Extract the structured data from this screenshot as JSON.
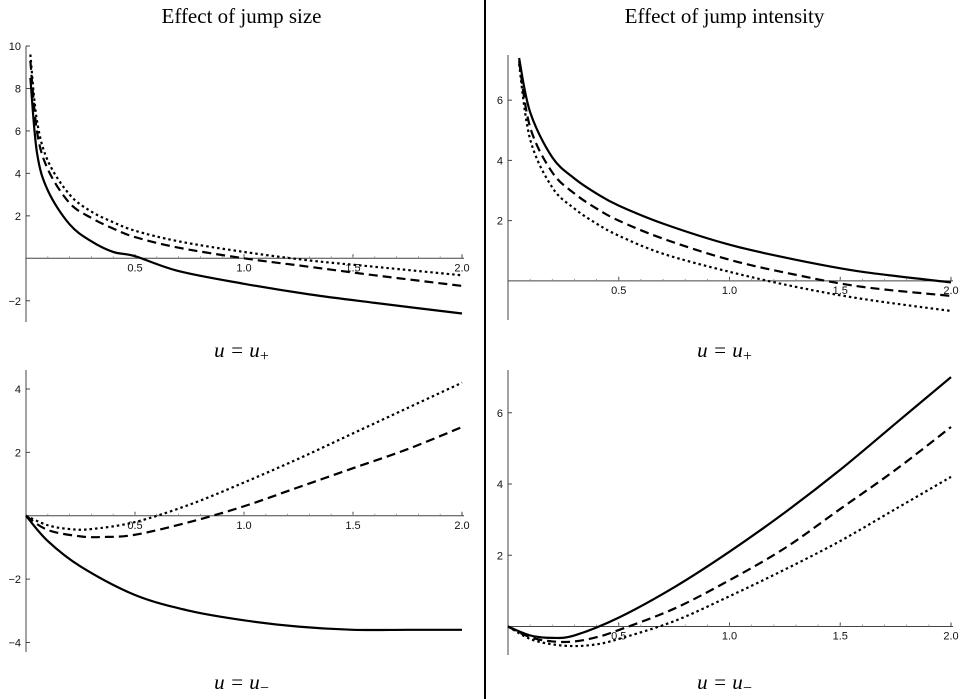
{
  "titles": {
    "left": "Effect of jump size",
    "right": "Effect of jump intensity"
  },
  "captions": [
    {
      "main": "u = u",
      "sub": "+"
    },
    {
      "main": "u = u",
      "sub": "+"
    },
    {
      "main": "u = u",
      "sub": "−"
    },
    {
      "main": "u = u",
      "sub": "−"
    }
  ],
  "chart_data": [
    {
      "type": "line",
      "title": "Effect of jump size",
      "caption": "u = u+",
      "xlim": [
        0,
        2.0
      ],
      "ylim": [
        -3.0,
        10.0
      ],
      "xticks": [
        0.5,
        1.0,
        1.5,
        2.0
      ],
      "xtick_labels": [
        "0.5",
        "1.0",
        "1.5",
        "2.0"
      ],
      "yticks": [
        -2,
        2,
        4,
        6,
        8,
        10
      ],
      "ytick_labels": [
        "−2",
        "2",
        "4",
        "6",
        "8",
        "10"
      ],
      "series": [
        {
          "style": "solid",
          "x": [
            0.02,
            0.05,
            0.1,
            0.2,
            0.3,
            0.4,
            0.5,
            0.7,
            1.0,
            1.3,
            1.6,
            2.0
          ],
          "y": [
            8.5,
            5.0,
            3.2,
            1.6,
            0.8,
            0.3,
            0.1,
            -0.6,
            -1.2,
            -1.7,
            -2.1,
            -2.6
          ]
        },
        {
          "style": "dashed",
          "x": [
            0.02,
            0.05,
            0.1,
            0.2,
            0.3,
            0.4,
            0.5,
            0.7,
            1.0,
            1.3,
            1.6,
            2.0
          ],
          "y": [
            9.3,
            6.0,
            4.2,
            2.6,
            1.9,
            1.4,
            1.0,
            0.5,
            0.0,
            -0.4,
            -0.8,
            -1.3
          ]
        },
        {
          "style": "dotted",
          "x": [
            0.02,
            0.05,
            0.1,
            0.2,
            0.3,
            0.4,
            0.5,
            0.7,
            1.0,
            1.3,
            1.6,
            2.0
          ],
          "y": [
            9.6,
            6.5,
            4.6,
            3.0,
            2.2,
            1.7,
            1.3,
            0.8,
            0.3,
            -0.1,
            -0.4,
            -0.8
          ]
        }
      ]
    },
    {
      "type": "line",
      "title": "Effect of jump intensity",
      "caption": "u = u+",
      "xlim": [
        0,
        2.0
      ],
      "ylim": [
        -1.3,
        7.5
      ],
      "xticks": [
        0.5,
        1.0,
        1.5,
        2.0
      ],
      "xtick_labels": [
        "0.5",
        "1.0",
        "1.5",
        "2.0"
      ],
      "yticks": [
        2,
        4,
        6
      ],
      "ytick_labels": [
        "2",
        "4",
        "6"
      ],
      "series": [
        {
          "style": "solid",
          "x": [
            0.05,
            0.1,
            0.2,
            0.3,
            0.4,
            0.5,
            0.7,
            1.0,
            1.3,
            1.6,
            2.0
          ],
          "y": [
            7.4,
            5.6,
            4.1,
            3.4,
            2.9,
            2.5,
            1.9,
            1.2,
            0.7,
            0.3,
            -0.05
          ]
        },
        {
          "style": "dashed",
          "x": [
            0.05,
            0.1,
            0.2,
            0.3,
            0.4,
            0.5,
            0.7,
            1.0,
            1.3,
            1.6,
            2.0
          ],
          "y": [
            7.3,
            5.1,
            3.6,
            2.9,
            2.4,
            2.0,
            1.4,
            0.7,
            0.2,
            -0.2,
            -0.5
          ]
        },
        {
          "style": "dotted",
          "x": [
            0.05,
            0.1,
            0.2,
            0.3,
            0.4,
            0.5,
            0.7,
            1.0,
            1.3,
            1.6,
            2.0
          ],
          "y": [
            7.2,
            4.7,
            3.1,
            2.4,
            1.9,
            1.5,
            0.9,
            0.3,
            -0.2,
            -0.6,
            -1.0
          ]
        }
      ]
    },
    {
      "type": "line",
      "title": "Effect of jump size",
      "caption": "u = u−",
      "xlim": [
        0,
        2.0
      ],
      "ylim": [
        -4.3,
        4.6
      ],
      "xticks": [
        0.5,
        1.0,
        1.5,
        2.0
      ],
      "xtick_labels": [
        "0.5",
        "1.0",
        "1.5",
        "2.0"
      ],
      "yticks": [
        -4,
        -2,
        2,
        4
      ],
      "ytick_labels": [
        "−4",
        "−2",
        "2",
        "4"
      ],
      "series": [
        {
          "style": "solid",
          "x": [
            0,
            0.1,
            0.25,
            0.5,
            0.75,
            1.0,
            1.25,
            1.5,
            1.75,
            2.0
          ],
          "y": [
            0,
            -0.8,
            -1.6,
            -2.5,
            -3.0,
            -3.3,
            -3.5,
            -3.6,
            -3.6,
            -3.6
          ]
        },
        {
          "style": "dashed",
          "x": [
            0,
            0.1,
            0.25,
            0.35,
            0.5,
            0.75,
            1.0,
            1.25,
            1.5,
            1.75,
            2.0
          ],
          "y": [
            0,
            -0.45,
            -0.65,
            -0.67,
            -0.6,
            -0.2,
            0.3,
            0.9,
            1.5,
            2.1,
            2.8
          ]
        },
        {
          "style": "dotted",
          "x": [
            0,
            0.1,
            0.2,
            0.3,
            0.5,
            0.75,
            1.0,
            1.25,
            1.5,
            1.75,
            2.0
          ],
          "y": [
            0,
            -0.3,
            -0.42,
            -0.42,
            -0.2,
            0.35,
            1.05,
            1.8,
            2.6,
            3.4,
            4.2
          ]
        }
      ]
    },
    {
      "type": "line",
      "title": "Effect of jump intensity",
      "caption": "u = u−",
      "xlim": [
        0,
        2.0
      ],
      "ylim": [
        -0.8,
        7.2
      ],
      "xticks": [
        0.5,
        1.0,
        1.5,
        2.0
      ],
      "xtick_labels": [
        "0.5",
        "1.0",
        "1.5",
        "2.0"
      ],
      "yticks": [
        2,
        4,
        6
      ],
      "ytick_labels": [
        "2",
        "4",
        "6"
      ],
      "series": [
        {
          "style": "solid",
          "x": [
            0,
            0.1,
            0.2,
            0.3,
            0.5,
            0.75,
            1.0,
            1.25,
            1.5,
            1.75,
            2.0
          ],
          "y": [
            0,
            -0.25,
            -0.32,
            -0.25,
            0.25,
            1.1,
            2.1,
            3.2,
            4.4,
            5.7,
            7.0
          ]
        },
        {
          "style": "dashed",
          "x": [
            0,
            0.1,
            0.2,
            0.3,
            0.4,
            0.5,
            0.75,
            1.0,
            1.25,
            1.5,
            1.75,
            2.0
          ],
          "y": [
            0,
            -0.3,
            -0.42,
            -0.42,
            -0.3,
            -0.1,
            0.5,
            1.3,
            2.2,
            3.3,
            4.4,
            5.6
          ]
        },
        {
          "style": "dotted",
          "x": [
            0,
            0.1,
            0.2,
            0.3,
            0.4,
            0.5,
            0.75,
            1.0,
            1.25,
            1.5,
            1.75,
            2.0
          ],
          "y": [
            0,
            -0.35,
            -0.5,
            -0.55,
            -0.5,
            -0.35,
            0.15,
            0.85,
            1.6,
            2.4,
            3.3,
            4.2
          ]
        }
      ]
    }
  ]
}
